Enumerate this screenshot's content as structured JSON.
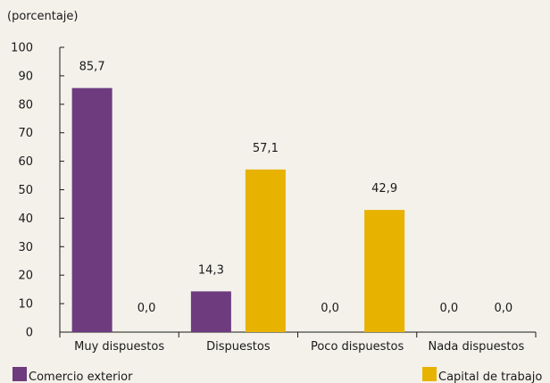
{
  "chart_data": {
    "type": "bar",
    "ylabel": "(porcentaje)",
    "ylim": [
      0,
      100
    ],
    "yticks": [
      0,
      10,
      20,
      30,
      40,
      50,
      60,
      70,
      80,
      90,
      100
    ],
    "categories": [
      "Muy dispuestos",
      "Dispuestos",
      "Poco dispuestos",
      "Nada dispuestos"
    ],
    "series": [
      {
        "name": "Comercio exterior",
        "color": "#6e3b7e",
        "values": [
          85.7,
          14.3,
          0.0,
          0.0
        ]
      },
      {
        "name": "Capital de trabajo",
        "color": "#e8b200",
        "values": [
          0.0,
          57.1,
          42.9,
          0.0
        ]
      }
    ],
    "data_labels": [
      "85,7",
      "0,0",
      "14,3",
      "57,1",
      "0,0",
      "42,9",
      "0,0",
      "0,0"
    ],
    "legend_position": "bottom",
    "grid": false
  }
}
